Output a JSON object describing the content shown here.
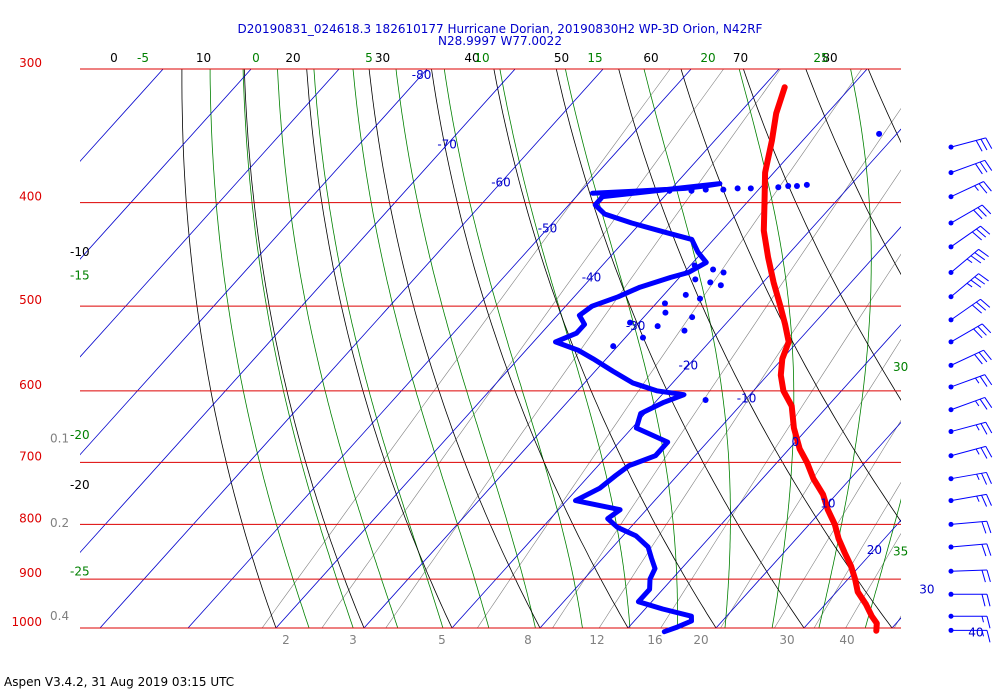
{
  "title_line1": "D20190831_024618.3 182610177 Hurricane Dorian, 20190830H2 WP-3D Orion, N42RF",
  "title_line2": "N28.9997 W77.0022",
  "footer": "Aspen V3.4.2, 31 Aug 2019  03:15 UTC",
  "colors": {
    "isobar": "#dd0000",
    "isotherm": "#0000cc",
    "dry_adiabat": "#000000",
    "moist_adiabat": "#008000",
    "mixing_ratio": "#808080",
    "temperature": "#ff0000",
    "dewpoint": "#0000ff",
    "wind_barb": "#0000ff"
  },
  "chart_data": {
    "type": "skew-t",
    "pressure_levels": [
      300,
      400,
      500,
      600,
      700,
      800,
      900,
      1000
    ],
    "pressure_labels": [
      "300",
      "400",
      "500",
      "600",
      "700",
      "800",
      "900",
      "1000"
    ],
    "isotherm_labels": [
      {
        "text": "-80",
        "temp": -80,
        "p": 304
      },
      {
        "text": "-70",
        "temp": -70,
        "p": 353
      },
      {
        "text": "-60",
        "temp": -60,
        "p": 383
      },
      {
        "text": "-50",
        "temp": -50,
        "p": 423
      },
      {
        "text": "-40",
        "temp": -40,
        "p": 470
      },
      {
        "text": "-30",
        "temp": -30,
        "p": 522
      },
      {
        "text": "-20",
        "temp": -20,
        "p": 568
      },
      {
        "text": "-10",
        "temp": -10,
        "p": 610
      },
      {
        "text": "0",
        "temp": 0,
        "p": 670
      },
      {
        "text": "10",
        "temp": 10,
        "p": 765
      },
      {
        "text": "20",
        "temp": 20,
        "p": 845
      },
      {
        "text": "30",
        "temp": 30,
        "p": 920
      },
      {
        "text": "40",
        "temp": 40,
        "p": 1010
      }
    ],
    "dry_adiabat_labels": [
      "0",
      "10",
      "20",
      "30",
      "40",
      "50",
      "60",
      "70",
      "80"
    ],
    "dry_adiabat_side_labels": [
      {
        "text": "-10",
        "p": 445
      },
      {
        "text": "-20",
        "p": 735
      }
    ],
    "moist_adiabat_labels": [
      "-5",
      "0",
      "5",
      "10",
      "15",
      "20",
      "25"
    ],
    "moist_adiabat_side_labels": [
      {
        "text": "-15",
        "side": "left",
        "p": 468
      },
      {
        "text": "-20",
        "side": "left",
        "p": 660
      },
      {
        "text": "-25",
        "side": "left",
        "p": 885
      },
      {
        "text": "30",
        "side": "right",
        "p": 570
      },
      {
        "text": "35",
        "side": "right",
        "p": 848
      }
    ],
    "mixing_ratio_labels": [
      "2",
      "3",
      "5",
      "8",
      "12",
      "16",
      "20"
    ],
    "mixing_ratio_side_labels": [
      {
        "text": "0.1",
        "p": 665
      },
      {
        "text": "0.2",
        "p": 798
      },
      {
        "text": "0.4",
        "p": 975
      }
    ],
    "temperature_profile": [
      {
        "p": 312,
        "t": -37.5
      },
      {
        "p": 330,
        "t": -35.8
      },
      {
        "p": 350,
        "t": -33.5
      },
      {
        "p": 375,
        "t": -31.0
      },
      {
        "p": 400,
        "t": -28.0
      },
      {
        "p": 425,
        "t": -25.2
      },
      {
        "p": 450,
        "t": -22.0
      },
      {
        "p": 475,
        "t": -18.8
      },
      {
        "p": 500,
        "t": -15.6
      },
      {
        "p": 520,
        "t": -13.2
      },
      {
        "p": 540,
        "t": -11.0
      },
      {
        "p": 560,
        "t": -10.0
      },
      {
        "p": 580,
        "t": -8.5
      },
      {
        "p": 600,
        "t": -6.6
      },
      {
        "p": 620,
        "t": -4.1
      },
      {
        "p": 650,
        "t": -1.6
      },
      {
        "p": 680,
        "t": 1.2
      },
      {
        "p": 700,
        "t": 3.4
      },
      {
        "p": 725,
        "t": 5.8
      },
      {
        "p": 750,
        "t": 8.5
      },
      {
        "p": 775,
        "t": 10.6
      },
      {
        "p": 800,
        "t": 12.9
      },
      {
        "p": 825,
        "t": 14.8
      },
      {
        "p": 850,
        "t": 16.9
      },
      {
        "p": 875,
        "t": 19.0
      },
      {
        "p": 900,
        "t": 20.8
      },
      {
        "p": 925,
        "t": 22.4
      },
      {
        "p": 950,
        "t": 24.6
      },
      {
        "p": 975,
        "t": 26.5
      },
      {
        "p": 990,
        "t": 27.8
      },
      {
        "p": 1006,
        "t": 28.5
      }
    ],
    "dewpoint_profile": [
      {
        "p": 392,
        "td": -48.5
      },
      {
        "p": 390,
        "td": -43.0
      },
      {
        "p": 388,
        "td": -38.5
      },
      {
        "p": 386,
        "td": -36.5
      },
      {
        "p": 384,
        "td": -35.0
      },
      {
        "p": 395,
        "td": -47.0
      },
      {
        "p": 402,
        "td": -47.0
      },
      {
        "p": 410,
        "td": -45.0
      },
      {
        "p": 418,
        "td": -41.0
      },
      {
        "p": 426,
        "td": -36.5
      },
      {
        "p": 433,
        "td": -32.5
      },
      {
        "p": 445,
        "td": -30.5
      },
      {
        "p": 455,
        "td": -28.5
      },
      {
        "p": 465,
        "td": -29.5
      },
      {
        "p": 470,
        "td": -31.0
      },
      {
        "p": 480,
        "td": -33.5
      },
      {
        "p": 490,
        "td": -35.0
      },
      {
        "p": 500,
        "td": -37.0
      },
      {
        "p": 510,
        "td": -37.5
      },
      {
        "p": 520,
        "td": -36.0
      },
      {
        "p": 530,
        "td": -36.0
      },
      {
        "p": 540,
        "td": -37.5
      },
      {
        "p": 550,
        "td": -34.0
      },
      {
        "p": 560,
        "td": -31.5
      },
      {
        "p": 575,
        "td": -28.0
      },
      {
        "p": 590,
        "td": -24.5
      },
      {
        "p": 600,
        "td": -21.0
      },
      {
        "p": 605,
        "td": -17.5
      },
      {
        "p": 615,
        "td": -19.0
      },
      {
        "p": 630,
        "td": -20.5
      },
      {
        "p": 650,
        "td": -19.5
      },
      {
        "p": 670,
        "td": -14.5
      },
      {
        "p": 690,
        "td": -14.5
      },
      {
        "p": 705,
        "td": -16.5
      },
      {
        "p": 720,
        "td": -17.0
      },
      {
        "p": 740,
        "td": -17.5
      },
      {
        "p": 760,
        "td": -19.0
      },
      {
        "p": 775,
        "td": -13.0
      },
      {
        "p": 790,
        "td": -13.5
      },
      {
        "p": 805,
        "td": -11.5
      },
      {
        "p": 820,
        "td": -8.5
      },
      {
        "p": 840,
        "td": -6.0
      },
      {
        "p": 860,
        "td": -4.5
      },
      {
        "p": 880,
        "td": -3.0
      },
      {
        "p": 900,
        "td": -2.5
      },
      {
        "p": 920,
        "td": -1.5
      },
      {
        "p": 945,
        "td": -1.5
      },
      {
        "p": 960,
        "td": 2.0
      },
      {
        "p": 975,
        "td": 6.0
      },
      {
        "p": 985,
        "td": 6.5
      },
      {
        "p": 998,
        "td": 5.5
      },
      {
        "p": 1008,
        "td": 4.5
      }
    ],
    "dewpoint_scatter": [
      {
        "p": 345,
        "td": -22.0
      },
      {
        "p": 390,
        "td": -40.0
      },
      {
        "p": 390,
        "td": -37.5
      },
      {
        "p": 389,
        "td": -36.0
      },
      {
        "p": 389,
        "td": -34.0
      },
      {
        "p": 388,
        "td": -32.5
      },
      {
        "p": 388,
        "td": -31.0
      },
      {
        "p": 387,
        "td": -29.5
      },
      {
        "p": 387,
        "td": -28.0
      },
      {
        "p": 386,
        "td": -27.0
      },
      {
        "p": 386,
        "td": -26.0
      },
      {
        "p": 385,
        "td": -25.0
      },
      {
        "p": 458,
        "td": -29.5
      },
      {
        "p": 462,
        "td": -27.0
      },
      {
        "p": 465,
        "td": -25.5
      },
      {
        "p": 472,
        "td": -28.0
      },
      {
        "p": 475,
        "td": -26.0
      },
      {
        "p": 478,
        "td": -24.5
      },
      {
        "p": 488,
        "td": -27.5
      },
      {
        "p": 492,
        "td": -25.5
      },
      {
        "p": 497,
        "td": -29.0
      },
      {
        "p": 507,
        "td": -28.0
      },
      {
        "p": 512,
        "td": -24.5
      },
      {
        "p": 518,
        "td": -31.0
      },
      {
        "p": 522,
        "td": -27.5
      },
      {
        "p": 527,
        "td": -24.0
      },
      {
        "p": 535,
        "td": -28.0
      },
      {
        "p": 545,
        "td": -30.5
      },
      {
        "p": 612,
        "td": -14.5
      }
    ],
    "wind_profile": [
      {
        "p": 355,
        "speed": 30,
        "dir": 165
      },
      {
        "p": 375,
        "speed": 30,
        "dir": 160
      },
      {
        "p": 395,
        "speed": 25,
        "dir": 155
      },
      {
        "p": 418,
        "speed": 30,
        "dir": 150
      },
      {
        "p": 440,
        "speed": 30,
        "dir": 145
      },
      {
        "p": 465,
        "speed": 35,
        "dir": 140
      },
      {
        "p": 490,
        "speed": 35,
        "dir": 140
      },
      {
        "p": 515,
        "speed": 30,
        "dir": 145
      },
      {
        "p": 540,
        "speed": 30,
        "dir": 150
      },
      {
        "p": 568,
        "speed": 30,
        "dir": 155
      },
      {
        "p": 595,
        "speed": 25,
        "dir": 160
      },
      {
        "p": 625,
        "speed": 25,
        "dir": 160
      },
      {
        "p": 655,
        "speed": 25,
        "dir": 165
      },
      {
        "p": 690,
        "speed": 25,
        "dir": 165
      },
      {
        "p": 725,
        "speed": 25,
        "dir": 170
      },
      {
        "p": 760,
        "speed": 25,
        "dir": 170
      },
      {
        "p": 800,
        "speed": 20,
        "dir": 175
      },
      {
        "p": 840,
        "speed": 20,
        "dir": 175
      },
      {
        "p": 885,
        "speed": 20,
        "dir": 178
      },
      {
        "p": 930,
        "speed": 20,
        "dir": 180
      },
      {
        "p": 975,
        "speed": 15,
        "dir": 180
      },
      {
        "p": 1005,
        "speed": 15,
        "dir": 180
      }
    ]
  }
}
